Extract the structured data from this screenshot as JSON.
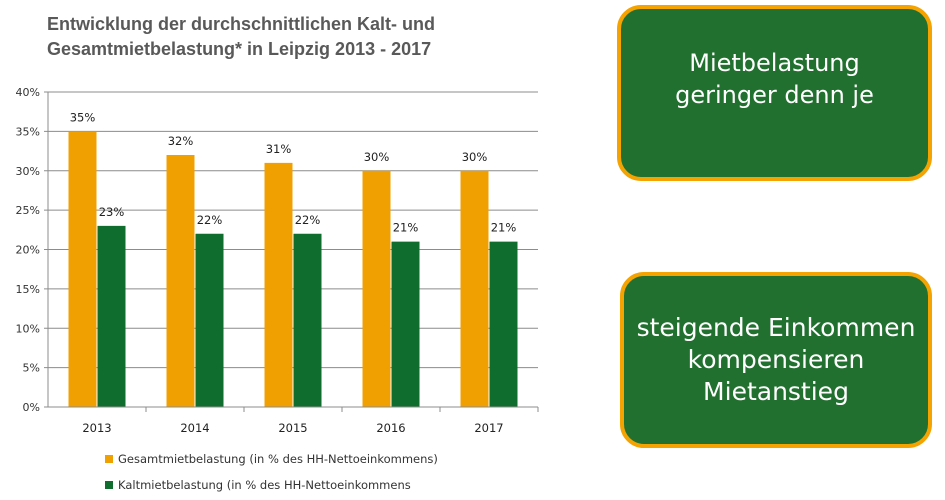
{
  "chart_data": {
    "type": "bar",
    "title_lines": [
      "Entwicklung der durchschnittlichen Kalt- und",
      "Gesamtmietbelastung* in Leipzig 2013 - 2017"
    ],
    "categories": [
      "2013",
      "2014",
      "2015",
      "2016",
      "2017"
    ],
    "series": [
      {
        "name": "Gesamtmietbelastung (in % des HH-Nettoeinkommens)",
        "color": "#f0a000",
        "values": [
          35,
          32,
          31,
          30,
          30
        ],
        "labels": [
          "35%",
          "32%",
          "31%",
          "30%",
          "30%"
        ]
      },
      {
        "name": "Kaltmietbelastung (in % des HH-Nettoeinkommens",
        "color": "#0f6e2e",
        "values": [
          23,
          22,
          22,
          21,
          21
        ],
        "labels": [
          "23%",
          "22%",
          "22%",
          "21%",
          "21%"
        ]
      }
    ],
    "ylim": [
      0,
      40
    ],
    "yticks": [
      0,
      5,
      10,
      15,
      20,
      25,
      30,
      35,
      40
    ],
    "ytick_labels": [
      "0%",
      "5%",
      "10%",
      "15%",
      "20%",
      "25%",
      "30%",
      "35%",
      "40%"
    ],
    "xlabel": "",
    "ylabel": "",
    "grid": true,
    "legend_position": "bottom"
  },
  "callouts": [
    {
      "lines": [
        "Mietbelastung",
        "geringer denn je"
      ]
    },
    {
      "lines": [
        "steigende Einkommen",
        "kompensieren",
        "Mietanstieg"
      ]
    }
  ],
  "colors": {
    "callout_fill": "#21702f",
    "callout_border": "#f4a300",
    "grid": "#8c8c8c"
  }
}
